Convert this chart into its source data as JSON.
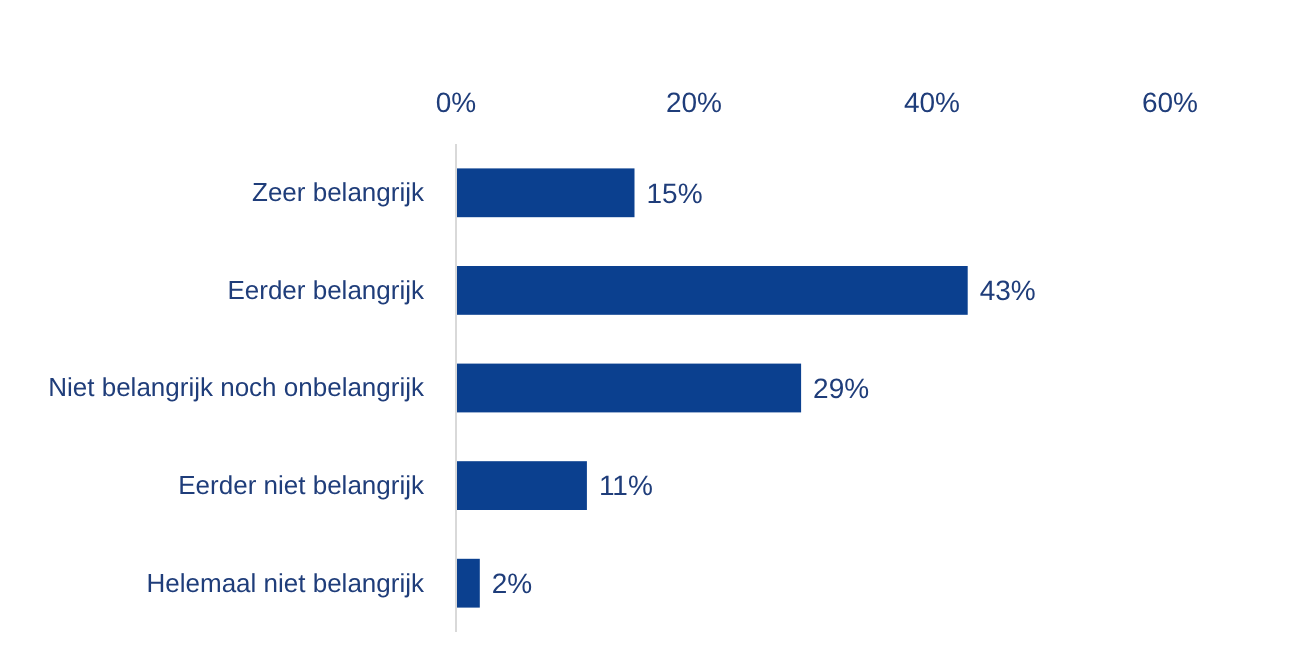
{
  "chart_data": {
    "type": "bar",
    "orientation": "horizontal",
    "categories": [
      "Zeer belangrijk",
      "Eerder belangrijk",
      "Niet belangrijk noch onbelangrijk",
      "Eerder niet belangrijk",
      "Helemaal niet belangrijk"
    ],
    "values": [
      15,
      43,
      29,
      11,
      2
    ],
    "value_labels": [
      "15%",
      "43%",
      "29%",
      "11%",
      "2%"
    ],
    "color": "#0b408f",
    "xlim": [
      0,
      60
    ],
    "xticks": [
      {
        "value": 0,
        "label": "0%"
      },
      {
        "value": 20,
        "label": "20%"
      },
      {
        "value": 40,
        "label": "40%"
      },
      {
        "value": 60,
        "label": "60%"
      }
    ],
    "grid": false
  }
}
